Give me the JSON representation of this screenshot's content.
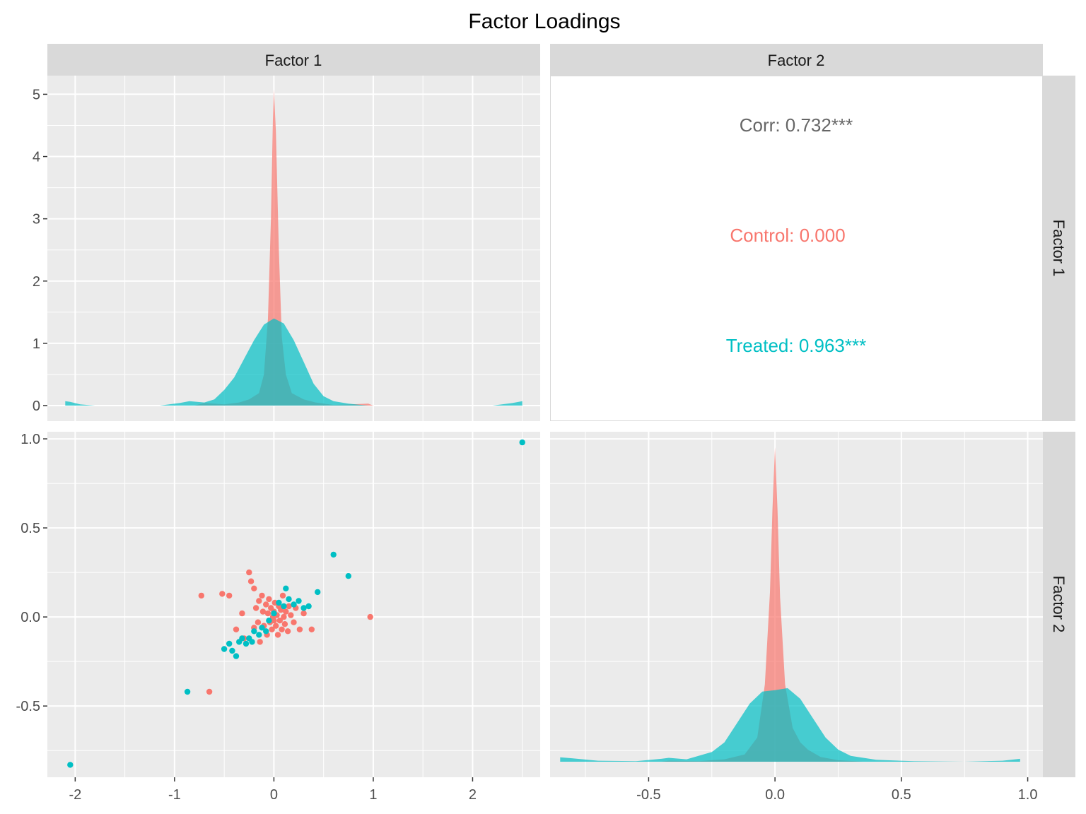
{
  "chart_data": {
    "type": "scatter-matrix",
    "title": "Factor Loadings",
    "variables": [
      "Factor 1",
      "Factor 2"
    ],
    "groups": [
      {
        "name": "Control",
        "color": "#F8766D"
      },
      {
        "name": "Treated",
        "color": "#00BFC4"
      }
    ],
    "axes": {
      "factor1_x": {
        "range": [
          -2.28,
          2.68
        ],
        "ticks": [
          -2,
          -1,
          0,
          1,
          2
        ],
        "tick_labels": [
          "-2",
          "-1",
          "0",
          "1",
          "2"
        ]
      },
      "factor2_x": {
        "range": [
          -0.89,
          1.06
        ],
        "ticks": [
          -0.5,
          0.0,
          0.5,
          1.0
        ],
        "tick_labels": [
          "-0.5",
          "0.0",
          "0.5",
          "1.0"
        ]
      },
      "density_y": {
        "range": [
          -0.25,
          5.3
        ],
        "ticks": [
          0,
          1,
          2,
          3,
          4,
          5
        ],
        "tick_labels": [
          "0",
          "1",
          "2",
          "3",
          "4",
          "5"
        ]
      },
      "factor2_y": {
        "range": [
          -0.9,
          1.04
        ],
        "ticks": [
          -0.5,
          0.0,
          0.5,
          1.0
        ],
        "tick_labels": [
          "-0.5",
          "0.0",
          "0.5",
          "1.0"
        ]
      }
    },
    "correlation_panel": {
      "overall": "Corr: 0.732***",
      "by_group": [
        {
          "group": "Control",
          "text": "Control: 0.000"
        },
        {
          "group": "Treated",
          "text": "Treated: 0.963***"
        }
      ]
    },
    "density_factor1": {
      "Control": [
        [
          -0.8,
          0.0
        ],
        [
          -0.7,
          0.04
        ],
        [
          -0.5,
          0.02
        ],
        [
          -0.35,
          0.05
        ],
        [
          -0.25,
          0.1
        ],
        [
          -0.15,
          0.2
        ],
        [
          -0.1,
          0.5
        ],
        [
          -0.06,
          1.4
        ],
        [
          -0.03,
          3.0
        ],
        [
          -0.01,
          4.6
        ],
        [
          0.0,
          5.08
        ],
        [
          0.02,
          4.4
        ],
        [
          0.05,
          2.5
        ],
        [
          0.08,
          1.1
        ],
        [
          0.12,
          0.5
        ],
        [
          0.18,
          0.2
        ],
        [
          0.3,
          0.1
        ],
        [
          0.42,
          0.05
        ],
        [
          0.6,
          0.01
        ],
        [
          0.95,
          0.03
        ],
        [
          1.0,
          0.0
        ]
      ],
      "Treated": [
        [
          -2.1,
          0.07
        ],
        [
          -2.05,
          0.06
        ],
        [
          -1.95,
          0.02
        ],
        [
          -1.8,
          0.0
        ],
        [
          -1.15,
          0.0
        ],
        [
          -0.95,
          0.04
        ],
        [
          -0.85,
          0.07
        ],
        [
          -0.7,
          0.05
        ],
        [
          -0.6,
          0.1
        ],
        [
          -0.5,
          0.25
        ],
        [
          -0.4,
          0.45
        ],
        [
          -0.3,
          0.75
        ],
        [
          -0.2,
          1.05
        ],
        [
          -0.1,
          1.3
        ],
        [
          0.0,
          1.4
        ],
        [
          0.1,
          1.32
        ],
        [
          0.2,
          1.05
        ],
        [
          0.3,
          0.7
        ],
        [
          0.4,
          0.35
        ],
        [
          0.5,
          0.15
        ],
        [
          0.6,
          0.07
        ],
        [
          0.75,
          0.03
        ],
        [
          0.95,
          0.0
        ],
        [
          2.2,
          0.0
        ],
        [
          2.4,
          0.04
        ],
        [
          2.5,
          0.07
        ]
      ]
    },
    "density_factor2": {
      "Control": [
        [
          -0.45,
          0.0
        ],
        [
          -0.42,
          0.02
        ],
        [
          -0.3,
          0.01
        ],
        [
          -0.2,
          0.05
        ],
        [
          -0.12,
          0.15
        ],
        [
          -0.07,
          0.5
        ],
        [
          -0.04,
          1.6
        ],
        [
          -0.02,
          3.5
        ],
        [
          -0.01,
          5.2
        ],
        [
          0.0,
          6.5
        ],
        [
          0.01,
          5.2
        ],
        [
          0.02,
          3.4
        ],
        [
          0.04,
          1.6
        ],
        [
          0.07,
          0.7
        ],
        [
          0.1,
          0.4
        ],
        [
          0.13,
          0.25
        ],
        [
          0.18,
          0.1
        ],
        [
          0.25,
          0.03
        ],
        [
          0.35,
          0.0
        ]
      ],
      "Treated": [
        [
          -0.85,
          0.09
        ],
        [
          -0.8,
          0.07
        ],
        [
          -0.7,
          0.02
        ],
        [
          -0.55,
          0.01
        ],
        [
          -0.45,
          0.06
        ],
        [
          -0.42,
          0.08
        ],
        [
          -0.35,
          0.05
        ],
        [
          -0.25,
          0.2
        ],
        [
          -0.2,
          0.4
        ],
        [
          -0.15,
          0.8
        ],
        [
          -0.1,
          1.2
        ],
        [
          -0.05,
          1.45
        ],
        [
          0.0,
          1.48
        ],
        [
          0.05,
          1.52
        ],
        [
          0.1,
          1.3
        ],
        [
          0.15,
          0.9
        ],
        [
          0.2,
          0.5
        ],
        [
          0.25,
          0.25
        ],
        [
          0.3,
          0.12
        ],
        [
          0.4,
          0.04
        ],
        [
          0.55,
          0.01
        ],
        [
          0.75,
          0.0
        ],
        [
          0.9,
          0.02
        ],
        [
          0.97,
          0.06
        ]
      ]
    },
    "scatter": {
      "Control": [
        [
          -0.73,
          0.12
        ],
        [
          -0.65,
          -0.42
        ],
        [
          -0.52,
          0.13
        ],
        [
          -0.45,
          0.12
        ],
        [
          -0.38,
          -0.07
        ],
        [
          -0.32,
          0.02
        ],
        [
          -0.3,
          -0.12
        ],
        [
          -0.25,
          0.25
        ],
        [
          -0.23,
          0.2
        ],
        [
          -0.2,
          0.16
        ],
        [
          -0.2,
          -0.06
        ],
        [
          -0.18,
          0.05
        ],
        [
          -0.16,
          -0.03
        ],
        [
          -0.15,
          0.09
        ],
        [
          -0.14,
          -0.14
        ],
        [
          -0.12,
          0.12
        ],
        [
          -0.11,
          0.03
        ],
        [
          -0.1,
          -0.05
        ],
        [
          -0.08,
          0.07
        ],
        [
          -0.07,
          -0.1
        ],
        [
          -0.06,
          0.02
        ],
        [
          -0.05,
          0.1
        ],
        [
          -0.04,
          -0.03
        ],
        [
          -0.03,
          0.05
        ],
        [
          -0.02,
          -0.07
        ],
        [
          -0.01,
          0.0
        ],
        [
          0.0,
          0.03
        ],
        [
          0.0,
          -0.02
        ],
        [
          0.01,
          0.08
        ],
        [
          0.02,
          -0.05
        ],
        [
          0.03,
          0.01
        ],
        [
          0.04,
          -0.1
        ],
        [
          0.05,
          0.06
        ],
        [
          0.06,
          -0.02
        ],
        [
          0.07,
          0.04
        ],
        [
          0.08,
          -0.07
        ],
        [
          0.09,
          0.12
        ],
        [
          0.1,
          0.0
        ],
        [
          0.11,
          -0.04
        ],
        [
          0.12,
          0.03
        ],
        [
          0.14,
          -0.08
        ],
        [
          0.15,
          0.06
        ],
        [
          0.17,
          0.01
        ],
        [
          0.2,
          -0.03
        ],
        [
          0.22,
          0.05
        ],
        [
          0.26,
          -0.07
        ],
        [
          0.3,
          0.02
        ],
        [
          0.38,
          -0.07
        ],
        [
          0.97,
          0.0
        ]
      ],
      "Treated": [
        [
          -2.05,
          -0.83
        ],
        [
          -0.87,
          -0.42
        ],
        [
          -0.5,
          -0.18
        ],
        [
          -0.45,
          -0.15
        ],
        [
          -0.42,
          -0.19
        ],
        [
          -0.38,
          -0.22
        ],
        [
          -0.35,
          -0.14
        ],
        [
          -0.32,
          -0.12
        ],
        [
          -0.28,
          -0.15
        ],
        [
          -0.25,
          -0.12
        ],
        [
          -0.22,
          -0.14
        ],
        [
          -0.2,
          -0.08
        ],
        [
          -0.15,
          -0.1
        ],
        [
          -0.12,
          -0.06
        ],
        [
          -0.08,
          -0.08
        ],
        [
          -0.05,
          -0.02
        ],
        [
          0.0,
          0.02
        ],
        [
          0.05,
          0.08
        ],
        [
          0.1,
          0.06
        ],
        [
          0.12,
          0.16
        ],
        [
          0.15,
          0.1
        ],
        [
          0.2,
          0.07
        ],
        [
          0.25,
          0.09
        ],
        [
          0.3,
          0.05
        ],
        [
          0.35,
          0.06
        ],
        [
          0.44,
          0.14
        ],
        [
          0.6,
          0.35
        ],
        [
          0.75,
          0.23
        ],
        [
          2.5,
          0.98
        ]
      ]
    }
  }
}
